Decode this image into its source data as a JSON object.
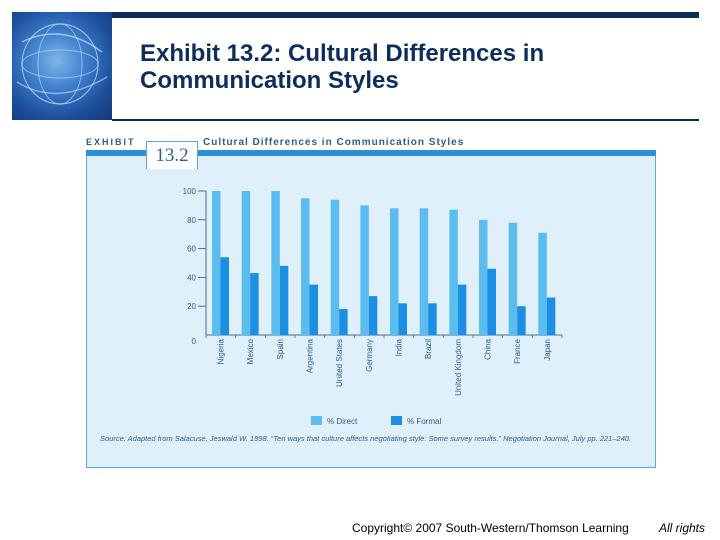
{
  "slide": {
    "title_line1": "Exhibit 13.2: Cultural Differences in",
    "title_line2": "Communication Styles",
    "copyright": "Copyright© 2007 South-Western/Thomson Learning",
    "rights": "All rights"
  },
  "exhibit": {
    "label": "EXHIBIT",
    "number": "13.2",
    "title": "Cultural Differences in Communication Styles",
    "source": "Source: Adapted from Salacuse, Jeswald W. 1998. “Ten ways that culture affects negotiating style: Some survey results.” Negotiation Journal, July pp. 221–240."
  },
  "colors": {
    "direct": "#5bbcf0",
    "formal": "#1a8fe3",
    "navy": "#0d2d5c",
    "panel": "#dff0fb",
    "text": "#2c5f8a"
  },
  "chart_data": {
    "type": "bar",
    "title": "Cultural Differences in Communication Styles",
    "categories": [
      "Nigeria",
      "Mexico",
      "Spain",
      "Argentina",
      "United States",
      "Germany",
      "India",
      "Brazil",
      "United Kingdom",
      "China",
      "France",
      "Japan"
    ],
    "series": [
      {
        "name": "% Direct",
        "values": [
          100,
          100,
          100,
          95,
          94,
          90,
          88,
          88,
          87,
          80,
          78,
          71
        ]
      },
      {
        "name": "% Formal",
        "values": [
          54,
          43,
          48,
          35,
          18,
          27,
          22,
          22,
          35,
          46,
          20,
          26
        ]
      }
    ],
    "yticks": [
      "0",
      "20",
      "40",
      "60",
      "80",
      "100"
    ],
    "ylim": [
      0,
      100
    ],
    "legend_position": "bottom",
    "grid": false
  }
}
